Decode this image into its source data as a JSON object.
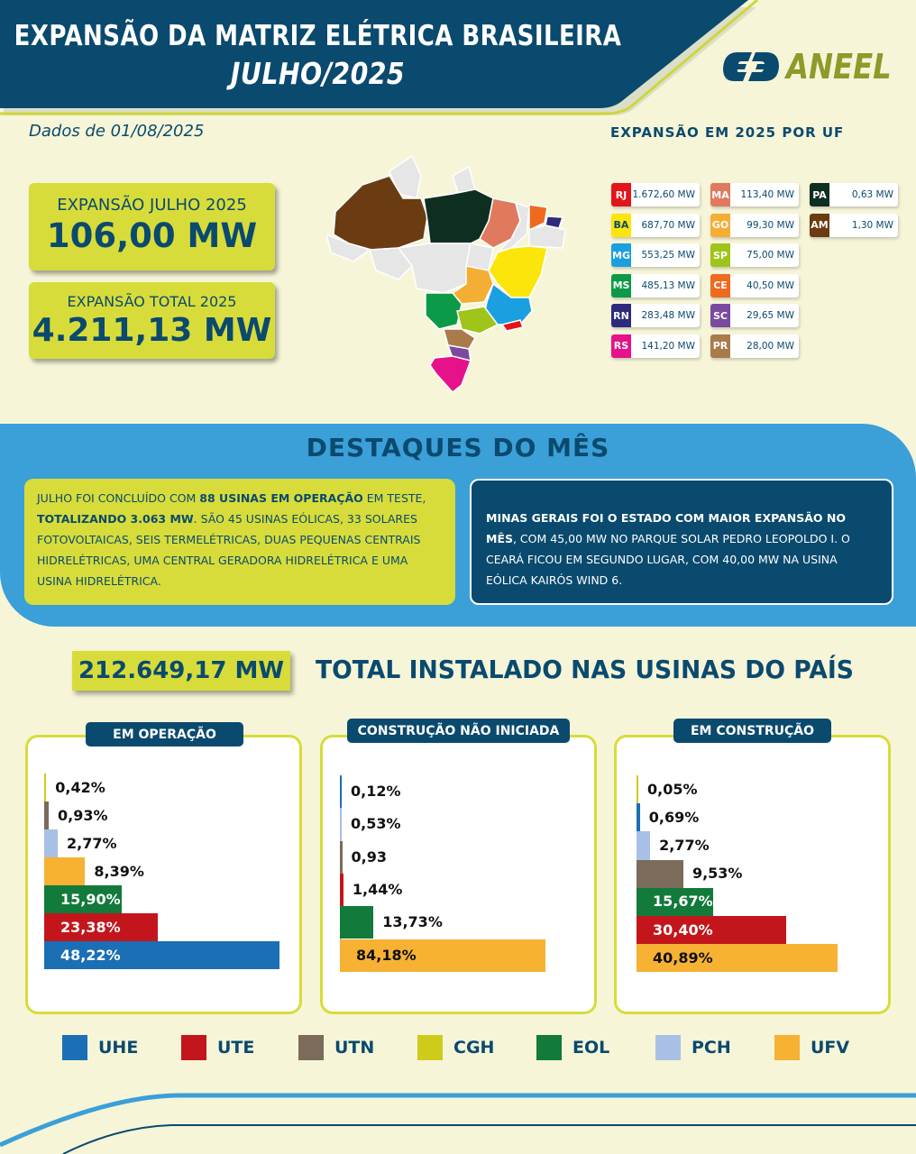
{
  "header": {
    "title": "EXPANSÃO DA MATRIZ ELÉTRICA BRASILEIRA",
    "subtitle": "JULHO/2025",
    "logo_text": "ANEEL"
  },
  "date_label": "Dados de 01/08/2025",
  "kpis": [
    {
      "label": "EXPANSÃO JULHO 2025",
      "value": "106,00 MW"
    },
    {
      "label": "EXPANSÃO TOTAL 2025",
      "value": "4.211,13 MW"
    }
  ],
  "uf": {
    "title": "EXPANSÃO EM 2025 POR UF",
    "items": [
      {
        "code": "RJ",
        "value": "1.672,60 MW",
        "color": "#e3141b"
      },
      {
        "code": "BA",
        "value": "687,70 MW",
        "color": "#fbe50b",
        "dark": true
      },
      {
        "code": "MG",
        "value": "553,25 MW",
        "color": "#1aa0e0"
      },
      {
        "code": "MS",
        "value": "485,13 MW",
        "color": "#0d9a48"
      },
      {
        "code": "RN",
        "value": "283,48 MW",
        "color": "#2e2a7c"
      },
      {
        "code": "RS",
        "value": "141,20 MW",
        "color": "#e5128a"
      },
      {
        "code": "MA",
        "value": "113,40 MW",
        "color": "#e07a5f"
      },
      {
        "code": "GO",
        "value": "99,30 MW",
        "color": "#f5ae34"
      },
      {
        "code": "SP",
        "value": "75,00 MW",
        "color": "#9fc41a"
      },
      {
        "code": "CE",
        "value": "40,50 MW",
        "color": "#ee6a1f"
      },
      {
        "code": "SC",
        "value": "29,65 MW",
        "color": "#7a4a9e"
      },
      {
        "code": "PR",
        "value": "28,00 MW",
        "color": "#a97b4a"
      },
      {
        "code": "PA",
        "value": "0,63 MW",
        "color": "#0f2e22"
      },
      {
        "code": "AM",
        "value": "1,30 MW",
        "color": "#6b3b12"
      }
    ]
  },
  "highlights": {
    "title": "DESTAQUES DO MÊS",
    "left": {
      "p1": "JULHO FOI CONCLUÍDO COM ",
      "b1": "88 USINAS EM OPERAÇÃO",
      "p2": " EM TESTE, ",
      "b2": "TOTALIZANDO 3.063 MW",
      "p3": ". SÃO 45 USINAS EÓLICAS, 33 SOLARES FOTOVOLTAICAS, SEIS TERMELÉTRICAS, DUAS PEQUENAS CENTRAIS HIDRELÉTRICAS, UMA CENTRAL GERADORA HIDRELÉTRICA E UMA USINA HIDRELÉTRICA."
    },
    "right": {
      "b1": "MINAS GERAIS FOI O ESTADO COM MAIOR EXPANSÃO NO MÊS",
      "p1": ", COM 45,00 MW NO PARQUE SOLAR PEDRO LEOPOLDO I. O CEARÁ FICOU EM SEGUNDO LUGAR, COM 40,00 MW NA USINA EÓLICA KAIRÓS WIND 6."
    }
  },
  "total": {
    "value": "212.649,17 MW",
    "label": "TOTAL INSTALADO NAS USINAS DO PAÍS"
  },
  "legend": [
    {
      "name": "UHE",
      "color": "#1a6fb5"
    },
    {
      "name": "UTE",
      "color": "#c3161c"
    },
    {
      "name": "UTN",
      "color": "#7b6b5a"
    },
    {
      "name": "CGH",
      "color": "#cfcb1a"
    },
    {
      "name": "EOL",
      "color": "#127a3a"
    },
    {
      "name": "PCH",
      "color": "#a9c0e6"
    },
    {
      "name": "UFV",
      "color": "#f7b133"
    }
  ],
  "chart_data": [
    {
      "type": "bar",
      "orientation": "horizontal",
      "title": "EM OPERAÇÃO",
      "categories": [
        "CGH",
        "UTN",
        "PCH",
        "UFV",
        "EOL",
        "UTE",
        "UHE"
      ],
      "values": [
        0.42,
        0.93,
        2.77,
        8.39,
        15.9,
        23.38,
        48.22
      ],
      "labels": [
        "0,42%",
        "0,93%",
        "2,77%",
        "8,39%",
        "15,90%",
        "23,38%",
        "48,22%"
      ]
    },
    {
      "type": "bar",
      "orientation": "horizontal",
      "title": "CONSTRUÇÃO NÃO INICIADA",
      "categories": [
        "UHE",
        "PCH",
        "UTN",
        "UTE",
        "EOL",
        "UFV"
      ],
      "values": [
        0.12,
        0.53,
        0.93,
        1.44,
        13.73,
        84.18
      ],
      "labels": [
        "0,12%",
        "0,53%",
        "0,93",
        "1,44%",
        "13,73%",
        "84,18%"
      ]
    },
    {
      "type": "bar",
      "orientation": "horizontal",
      "title": "EM CONSTRUÇÃO",
      "categories": [
        "CGH",
        "UHE",
        "PCH",
        "UTN",
        "EOL",
        "UTE",
        "UFV"
      ],
      "values": [
        0.05,
        0.69,
        2.77,
        9.53,
        15.67,
        30.4,
        40.89
      ],
      "labels": [
        "0,05%",
        "0,69%",
        "2,77%",
        "9,53%",
        "15,67%",
        "30,40%",
        "40,89%"
      ]
    }
  ]
}
